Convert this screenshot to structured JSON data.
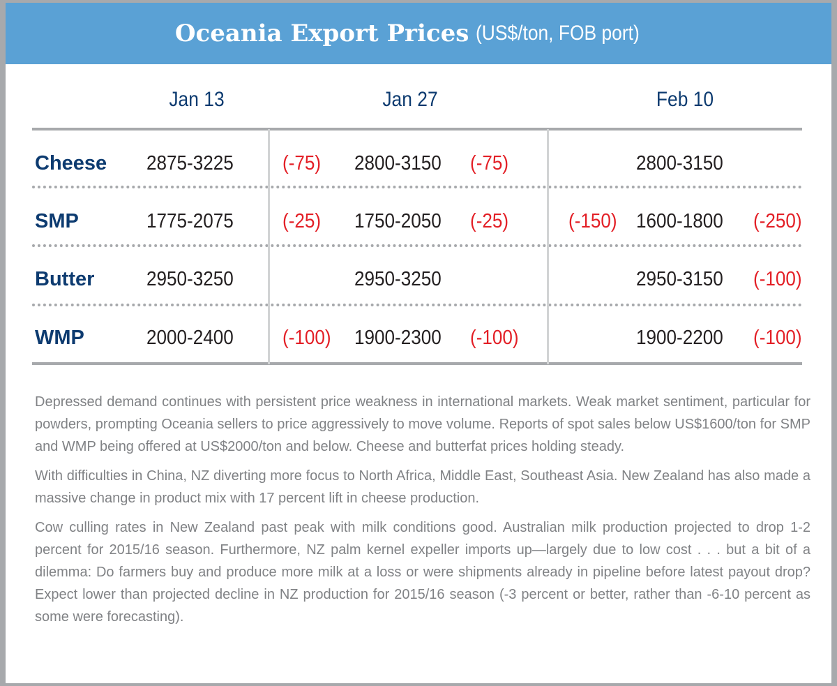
{
  "header": {
    "title": "Oceania Export Prices",
    "unit": "(US$/ton, FOB port)"
  },
  "columns": [
    "Jan 13",
    "Jan 27",
    "Feb 10"
  ],
  "colors": {
    "header_bg": "#5aa1d5",
    "label": "#0d3b70",
    "change": "#e31f26",
    "notes": "#808285"
  },
  "rows": [
    {
      "product": "Cheese",
      "jan13": "2875-3225",
      "chg1": "(-75)",
      "jan27": "2800-3150",
      "chg2": "(-75)",
      "chg3": "",
      "feb10": "2800-3150",
      "chg4": ""
    },
    {
      "product": "SMP",
      "jan13": "1775-2075",
      "chg1": "(-25)",
      "jan27": "1750-2050",
      "chg2": "(-25)",
      "chg3": "(-150)",
      "feb10": "1600-1800",
      "chg4": "(-250)"
    },
    {
      "product": "Butter",
      "jan13": "2950-3250",
      "chg1": "",
      "jan27": "2950-3250",
      "chg2": "",
      "chg3": "",
      "feb10": "2950-3150",
      "chg4": "(-100)"
    },
    {
      "product": "WMP",
      "jan13": "2000-2400",
      "chg1": "(-100)",
      "jan27": "1900-2300",
      "chg2": "(-100)",
      "chg3": "",
      "feb10": "1900-2200",
      "chg4": "(-100)"
    }
  ],
  "notes": [
    "Depressed demand continues with persistent price weakness in international markets. Weak market sentiment, particular for powders, prompting Oceania sellers to price aggressively to move volume. Reports of spot sales below US$1600/ton for SMP and WMP being offered at US$2000/ton and below. Cheese and butterfat prices holding steady.",
    "With difficulties in China, NZ diverting more focus to North Africa, Middle East, Southeast Asia. New Zealand has also made a massive change in product mix with 17 percent lift in cheese production.",
    "Cow culling rates in New Zealand past peak with milk conditions good. Australian milk production projected to drop 1-2 percent for 2015/16 season. Furthermore, NZ palm kernel expeller imports up—largely due to low cost . . . but a bit of a dilemma: Do farmers buy and produce more milk at a loss or were shipments already in pipeline before latest payout drop? Expect lower than projected decline in NZ production for 2015/16 season (-3 percent or better, rather than -6-10 percent as some were forecasting)."
  ]
}
